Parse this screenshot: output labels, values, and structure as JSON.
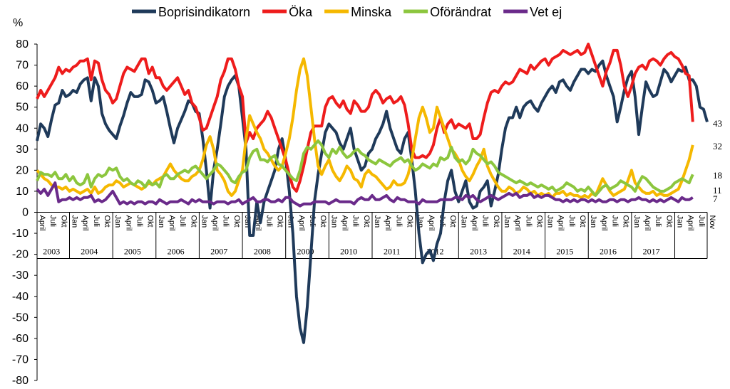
{
  "chart_data": {
    "type": "line",
    "ylabel": "%",
    "ylim": [
      -80,
      80
    ],
    "yticks": [
      80,
      70,
      60,
      50,
      40,
      30,
      20,
      10,
      0,
      -10,
      -20,
      -30,
      -40,
      -50,
      -60,
      -70,
      -80
    ],
    "x_start": "2003-04",
    "month_labels": [
      "Jan",
      "April",
      "Juli",
      "Okt"
    ],
    "first_year_months": [
      "April",
      "Juli",
      "Okt"
    ],
    "last_year_months": [
      "Jan",
      "April",
      "Juli",
      "Okt",
      "Nov"
    ],
    "years": [
      "2003",
      "2004",
      "2005",
      "2006",
      "2007",
      "2008",
      "2009",
      "2010",
      "2011",
      "2012",
      "2013",
      "2014",
      "2015",
      "2016",
      "2017"
    ],
    "legend_placement": "top",
    "end_labels": [
      "43",
      "32",
      "18",
      "11",
      "7"
    ],
    "series": [
      {
        "name": "Boprisindikatorn",
        "color": "#1f3a5a",
        "values": [
          34,
          42,
          40,
          36,
          44,
          51,
          52,
          58,
          55,
          56,
          58,
          57,
          61,
          63,
          64,
          53,
          64,
          60,
          47,
          42,
          39,
          37,
          35,
          41,
          46,
          52,
          57,
          55,
          55,
          56,
          63,
          62,
          58,
          52,
          53,
          55,
          48,
          40,
          33,
          40,
          44,
          48,
          53,
          52,
          48,
          47,
          35,
          20,
          2,
          20,
          30,
          42,
          55,
          60,
          63,
          65,
          60,
          45,
          30,
          -11,
          -11,
          5,
          -5,
          5,
          10,
          15,
          20,
          30,
          35,
          25,
          10,
          -10,
          -40,
          -55,
          -62,
          -45,
          -20,
          5,
          18,
          28,
          38,
          42,
          40,
          38,
          33,
          30,
          35,
          40,
          30,
          25,
          20,
          22,
          28,
          30,
          35,
          38,
          42,
          48,
          40,
          35,
          30,
          28,
          35,
          38,
          25,
          10,
          -10,
          -24,
          -20,
          -18,
          -23,
          -15,
          -10,
          5,
          15,
          20,
          10,
          5,
          10,
          15,
          5,
          2,
          3,
          10,
          12,
          15,
          3,
          10,
          18,
          30,
          40,
          45,
          45,
          50,
          45,
          50,
          52,
          53,
          50,
          48,
          52,
          55,
          58,
          60,
          57,
          62,
          63,
          60,
          58,
          62,
          65,
          68,
          68,
          66,
          68,
          67,
          70,
          72,
          65,
          60,
          55,
          43,
          50,
          58,
          64,
          67,
          55,
          37,
          50,
          62,
          58,
          55,
          56,
          62,
          68,
          66,
          62,
          65,
          68,
          67,
          69,
          63,
          63,
          60,
          50,
          49,
          43
        ],
        "data_labels": []
      },
      {
        "name": "Öka",
        "color": "#ee1c1c",
        "values": [
          54,
          58,
          55,
          58,
          61,
          64,
          69,
          66,
          68,
          67,
          69,
          70,
          72,
          72,
          73,
          63,
          72,
          71,
          63,
          58,
          56,
          52,
          54,
          60,
          66,
          69,
          68,
          67,
          70,
          73,
          73,
          66,
          69,
          64,
          64,
          60,
          58,
          60,
          62,
          64,
          60,
          56,
          58,
          52,
          50,
          45,
          39,
          40,
          45,
          50,
          55,
          63,
          67,
          73,
          73,
          68,
          60,
          55,
          33,
          38,
          35,
          40,
          42,
          44,
          48,
          45,
          40,
          35,
          30,
          25,
          18,
          12,
          10,
          15,
          22,
          30,
          38,
          41,
          41,
          41,
          50,
          54,
          55,
          52,
          50,
          53,
          49,
          47,
          53,
          51,
          48,
          48,
          50,
          56,
          58,
          56,
          52,
          54,
          55,
          52,
          53,
          55,
          51,
          42,
          30,
          26,
          26,
          27,
          26,
          28,
          32,
          40,
          45,
          38,
          42,
          44,
          40,
          42,
          41,
          40,
          42,
          35,
          35,
          37,
          45,
          52,
          57,
          58,
          57,
          60,
          62,
          61,
          62,
          65,
          68,
          67,
          66,
          70,
          68,
          70,
          72,
          73,
          70,
          73,
          74,
          75,
          77,
          76,
          75,
          76,
          77,
          75,
          76,
          80,
          75,
          70,
          65,
          60,
          67,
          71,
          77,
          77,
          70,
          60,
          55,
          60,
          66,
          69,
          70,
          68,
          72,
          73,
          72,
          70,
          73,
          75,
          76,
          74,
          73,
          70,
          66,
          65,
          43
        ],
        "data_labels": []
      },
      {
        "name": "Minska",
        "color": "#f5b800",
        "values": [
          20,
          18,
          16,
          15,
          13,
          12,
          12,
          11,
          12,
          10,
          11,
          10,
          9,
          10,
          11,
          9,
          12,
          9,
          10,
          12,
          13,
          13,
          15,
          14,
          12,
          13,
          14,
          13,
          12,
          11,
          12,
          14,
          13,
          15,
          16,
          17,
          20,
          23,
          20,
          18,
          16,
          15,
          15,
          17,
          18,
          20,
          25,
          32,
          36,
          30,
          20,
          18,
          15,
          10,
          8,
          10,
          15,
          20,
          35,
          46,
          42,
          38,
          35,
          30,
          28,
          25,
          22,
          20,
          22,
          28,
          35,
          45,
          58,
          68,
          73,
          65,
          50,
          35,
          22,
          18,
          22,
          25,
          20,
          17,
          15,
          18,
          22,
          20,
          16,
          15,
          12,
          18,
          20,
          18,
          17,
          15,
          13,
          11,
          12,
          15,
          13,
          13,
          14,
          18,
          25,
          35,
          45,
          50,
          45,
          38,
          40,
          50,
          45,
          40,
          35,
          30,
          28,
          25,
          20,
          17,
          15,
          18,
          22,
          25,
          30,
          22,
          18,
          15,
          12,
          10,
          10,
          12,
          11,
          9,
          10,
          12,
          11,
          9,
          10,
          8,
          9,
          8,
          9,
          7,
          9,
          9,
          10,
          8,
          9,
          8,
          8,
          7,
          8,
          7,
          9,
          8,
          12,
          16,
          13,
          10,
          8,
          9,
          10,
          11,
          15,
          20,
          14,
          12,
          10,
          9,
          9,
          10,
          8,
          9,
          8,
          8,
          9,
          10,
          11,
          15,
          20,
          25,
          32
        ],
        "data_labels": []
      },
      {
        "name": "Oförändrat",
        "color": "#8cc63e",
        "values": [
          15,
          19,
          18,
          18,
          17,
          19,
          16,
          16,
          18,
          15,
          17,
          14,
          13,
          14,
          18,
          12,
          16,
          18,
          17,
          18,
          21,
          20,
          21,
          17,
          15,
          16,
          14,
          13,
          15,
          14,
          12,
          15,
          13,
          14,
          12,
          17,
          18,
          16,
          16,
          18,
          19,
          20,
          19,
          21,
          22,
          20,
          18,
          16,
          18,
          20,
          23,
          22,
          20,
          18,
          15,
          14,
          17,
          19,
          20,
          26,
          29,
          30,
          25,
          25,
          24,
          26,
          27,
          23,
          22,
          20,
          18,
          16,
          15,
          20,
          28,
          31,
          30,
          32,
          34,
          32,
          28,
          26,
          30,
          28,
          31,
          28,
          26,
          27,
          29,
          30,
          28,
          27,
          25,
          24,
          23,
          25,
          24,
          23,
          22,
          24,
          25,
          26,
          24,
          25,
          22,
          20,
          21,
          23,
          22,
          21,
          23,
          22,
          26,
          25,
          26,
          31,
          26,
          24,
          25,
          23,
          25,
          30,
          28,
          27,
          25,
          23,
          24,
          22,
          19,
          18,
          17,
          16,
          15,
          14,
          15,
          14,
          13,
          14,
          13,
          12,
          13,
          12,
          11,
          12,
          10,
          11,
          12,
          14,
          13,
          12,
          10,
          11,
          10,
          12,
          10,
          8,
          10,
          12,
          13,
          11,
          12,
          13,
          15,
          14,
          13,
          12,
          10,
          14,
          17,
          16,
          14,
          12,
          11,
          10,
          10,
          11,
          12,
          14,
          15,
          16,
          15,
          14,
          18
        ],
        "data_labels": []
      },
      {
        "name": "Vet ej",
        "color": "#6a2a8a",
        "values": [
          11,
          9,
          11,
          8,
          11,
          14,
          5,
          6,
          6,
          7,
          6,
          7,
          6,
          7,
          7,
          8,
          5,
          6,
          5,
          6,
          8,
          10,
          7,
          4,
          5,
          4,
          5,
          4,
          5,
          5,
          4,
          5,
          5,
          4,
          6,
          5,
          4,
          5,
          5,
          5,
          6,
          5,
          4,
          6,
          5,
          6,
          5,
          5,
          5,
          4,
          5,
          5,
          5,
          4,
          5,
          5,
          6,
          4,
          5,
          6,
          7,
          5,
          5,
          6,
          6,
          5,
          5,
          6,
          5,
          7,
          7,
          5,
          4,
          3,
          4,
          4,
          4,
          5,
          5,
          5,
          5,
          4,
          5,
          6,
          5,
          5,
          5,
          5,
          4,
          6,
          7,
          6,
          6,
          8,
          6,
          6,
          7,
          8,
          6,
          5,
          7,
          6,
          6,
          5,
          5,
          5,
          4,
          6,
          5,
          5,
          5,
          5,
          6,
          6,
          6,
          6,
          7,
          7,
          6,
          8,
          7,
          8,
          6,
          5,
          6,
          7,
          8,
          7,
          6,
          7,
          8,
          9,
          8,
          9,
          7,
          8,
          8,
          9,
          7,
          8,
          7,
          8,
          8,
          7,
          6,
          6,
          5,
          6,
          5,
          6,
          5,
          6,
          6,
          5,
          6,
          5,
          6,
          5,
          5,
          6,
          6,
          5,
          6,
          6,
          5,
          6,
          6,
          7,
          6,
          6,
          5,
          6,
          5,
          6,
          5,
          6,
          7,
          6,
          5,
          7,
          6,
          6,
          7
        ],
        "data_labels": []
      }
    ]
  }
}
